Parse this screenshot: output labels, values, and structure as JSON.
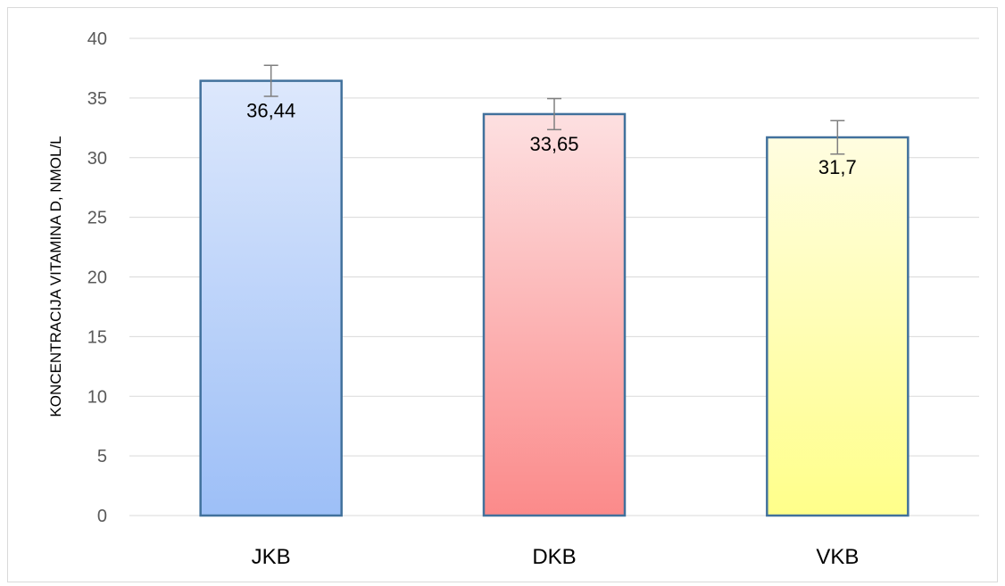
{
  "chart_data": {
    "type": "bar",
    "title": "",
    "xlabel": "",
    "ylabel": "KONCENTRACIJA VITAMINA D, NMOL/L",
    "ylim": [
      0,
      40
    ],
    "yticks": [
      0,
      5,
      10,
      15,
      20,
      25,
      30,
      35,
      40
    ],
    "categories": [
      "JKB",
      "DKB",
      "VKB"
    ],
    "values": [
      36.44,
      33.65,
      31.7
    ],
    "value_labels": [
      "36,44",
      "33,65",
      "31,7"
    ],
    "error": [
      1.3,
      1.3,
      1.4
    ],
    "grid": true,
    "legend": "none",
    "colors": {
      "bar_outline": "#41719c",
      "gradients": [
        {
          "top": "#dde8fc",
          "bottom": "#9dbff7"
        },
        {
          "top": "#fde0e1",
          "bottom": "#fb8a8a"
        },
        {
          "top": "#fffde0",
          "bottom": "#ffff8a"
        }
      ],
      "grid": "#d9d9d9",
      "error_bar": "#7f7f7f"
    }
  }
}
